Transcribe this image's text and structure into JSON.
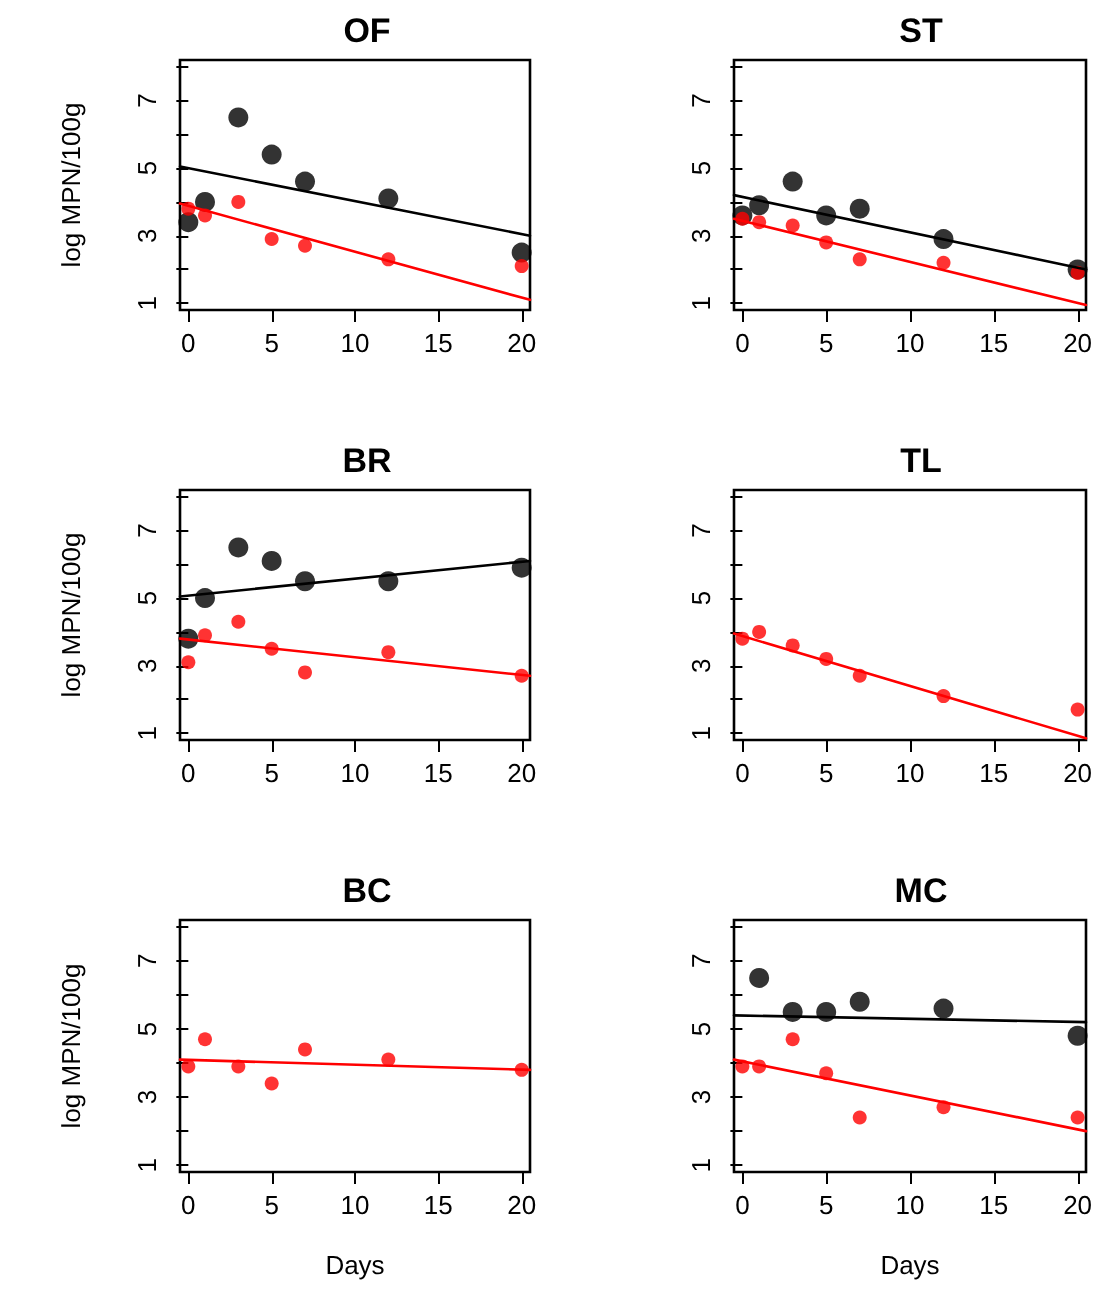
{
  "chart_data": [
    {
      "type": "scatter",
      "title": "OF",
      "ylabel": "log MPN/100g",
      "xlim": [
        -0.5,
        20.5
      ],
      "xticks": [
        0,
        5,
        10,
        15,
        20
      ],
      "ylim": [
        0.8,
        8.2
      ],
      "yticks": [
        1,
        {
          "value": 2,
          "label": null
        },
        3,
        {
          "value": 4,
          "label": null
        },
        5,
        {
          "value": 6,
          "label": null
        },
        7,
        {
          "value": 8,
          "label": null
        }
      ],
      "marker": "circle",
      "line_style": "solid",
      "series": [
        {
          "color": "#000000",
          "x": [
            0,
            1,
            3,
            5,
            7,
            12,
            20
          ],
          "values": [
            3.4,
            4.0,
            6.5,
            5.4,
            4.6,
            4.1,
            2.5
          ]
        },
        {
          "color": "#ff0000",
          "x": [
            0,
            1,
            3,
            5,
            7,
            12,
            20
          ],
          "values": [
            3.8,
            3.6,
            4.0,
            2.9,
            2.7,
            2.3,
            2.1
          ]
        },
        {
          "type": "line",
          "marker": "none",
          "color": "#000000",
          "x": [
            -0.5,
            20.5
          ],
          "values": [
            5.05,
            3.0
          ]
        },
        {
          "type": "line",
          "marker": "none",
          "color": "#ff0000",
          "x": [
            -0.5,
            20.5
          ],
          "values": [
            3.95,
            1.1
          ]
        }
      ]
    },
    {
      "type": "scatter",
      "title": "ST",
      "xlim": [
        -0.5,
        20.5
      ],
      "xticks": [
        0,
        5,
        10,
        15,
        20
      ],
      "ylim": [
        0.8,
        8.2
      ],
      "yticks": [
        1,
        {
          "value": 2,
          "label": null
        },
        3,
        {
          "value": 4,
          "label": null
        },
        5,
        {
          "value": 6,
          "label": null
        },
        7,
        {
          "value": 8,
          "label": null
        }
      ],
      "marker": "circle",
      "line_style": "solid",
      "series": [
        {
          "color": "#000000",
          "x": [
            0,
            1,
            3,
            5,
            7,
            12,
            20
          ],
          "values": [
            3.6,
            3.9,
            4.6,
            3.6,
            3.8,
            2.9,
            2.0
          ]
        },
        {
          "color": "#ff0000",
          "x": [
            0,
            1,
            3,
            5,
            7,
            12,
            20
          ],
          "values": [
            3.5,
            3.4,
            3.3,
            2.8,
            2.3,
            2.2,
            1.9
          ]
        },
        {
          "type": "line",
          "marker": "none",
          "color": "#000000",
          "x": [
            -0.5,
            20.5
          ],
          "values": [
            4.2,
            2.0
          ]
        },
        {
          "type": "line",
          "marker": "none",
          "color": "#ff0000",
          "x": [
            -0.5,
            20.5
          ],
          "values": [
            3.5,
            0.95
          ]
        }
      ]
    },
    {
      "type": "scatter",
      "title": "BR",
      "ylabel": "log MPN/100g",
      "xlim": [
        -0.5,
        20.5
      ],
      "xticks": [
        0,
        5,
        10,
        15,
        20
      ],
      "ylim": [
        0.8,
        8.2
      ],
      "yticks": [
        1,
        {
          "value": 2,
          "label": null
        },
        3,
        {
          "value": 4,
          "label": null
        },
        5,
        {
          "value": 6,
          "label": null
        },
        7,
        {
          "value": 8,
          "label": null
        }
      ],
      "marker": "circle",
      "line_style": "solid",
      "series": [
        {
          "color": "#000000",
          "x": [
            0,
            1,
            3,
            5,
            7,
            12,
            20
          ],
          "values": [
            3.8,
            5.0,
            6.5,
            6.1,
            5.5,
            5.5,
            5.9
          ]
        },
        {
          "color": "#ff0000",
          "x": [
            0,
            1,
            3,
            5,
            7,
            12,
            20
          ],
          "values": [
            3.1,
            3.9,
            4.3,
            3.5,
            2.8,
            3.4,
            2.7
          ]
        },
        {
          "type": "line",
          "marker": "none",
          "color": "#000000",
          "x": [
            -0.5,
            20.5
          ],
          "values": [
            5.05,
            6.1
          ]
        },
        {
          "type": "line",
          "marker": "none",
          "color": "#ff0000",
          "x": [
            -0.5,
            20.5
          ],
          "values": [
            3.8,
            2.7
          ]
        }
      ]
    },
    {
      "type": "scatter",
      "title": "TL",
      "xlim": [
        -0.5,
        20.5
      ],
      "xticks": [
        0,
        5,
        10,
        15,
        20
      ],
      "ylim": [
        0.8,
        8.2
      ],
      "yticks": [
        1,
        {
          "value": 2,
          "label": null
        },
        3,
        {
          "value": 4,
          "label": null
        },
        5,
        {
          "value": 6,
          "label": null
        },
        7,
        {
          "value": 8,
          "label": null
        }
      ],
      "marker": "circle",
      "line_style": "solid",
      "series": [
        {
          "color": "#ff0000",
          "x": [
            0,
            1,
            3,
            5,
            7,
            12,
            20
          ],
          "values": [
            3.8,
            4.0,
            3.6,
            3.2,
            2.7,
            2.1,
            1.7
          ]
        },
        {
          "type": "line",
          "marker": "none",
          "color": "#ff0000",
          "x": [
            -0.5,
            20.5
          ],
          "values": [
            3.95,
            0.85
          ]
        }
      ]
    },
    {
      "type": "scatter",
      "title": "BC",
      "xlabel": "Days",
      "ylabel": "log MPN/100g",
      "xlim": [
        -0.5,
        20.5
      ],
      "xticks": [
        0,
        5,
        10,
        15,
        20
      ],
      "ylim": [
        0.8,
        8.2
      ],
      "yticks": [
        1,
        {
          "value": 2,
          "label": null
        },
        3,
        {
          "value": 4,
          "label": null
        },
        5,
        {
          "value": 6,
          "label": null
        },
        7,
        {
          "value": 8,
          "label": null
        }
      ],
      "marker": "circle",
      "line_style": "solid",
      "series": [
        {
          "color": "#ff0000",
          "x": [
            0,
            1,
            3,
            5,
            7,
            12,
            20
          ],
          "values": [
            3.9,
            4.7,
            3.9,
            3.4,
            4.4,
            4.1,
            3.8
          ]
        },
        {
          "type": "line",
          "marker": "none",
          "color": "#ff0000",
          "x": [
            -0.5,
            20.5
          ],
          "values": [
            4.1,
            3.8
          ]
        }
      ]
    },
    {
      "type": "scatter",
      "title": "MC",
      "xlabel": "Days",
      "xlim": [
        -0.5,
        20.5
      ],
      "xticks": [
        0,
        5,
        10,
        15,
        20
      ],
      "ylim": [
        0.8,
        8.2
      ],
      "yticks": [
        1,
        {
          "value": 2,
          "label": null
        },
        3,
        {
          "value": 4,
          "label": null
        },
        5,
        {
          "value": 6,
          "label": null
        },
        7,
        {
          "value": 8,
          "label": null
        }
      ],
      "marker": "circle",
      "line_style": "solid",
      "series": [
        {
          "color": "#000000",
          "x": [
            1,
            3,
            5,
            7,
            12,
            20
          ],
          "values": [
            6.5,
            5.5,
            5.5,
            5.8,
            5.6,
            4.8
          ]
        },
        {
          "color": "#ff0000",
          "x": [
            0,
            1,
            3,
            5,
            7,
            12,
            20
          ],
          "values": [
            3.9,
            3.9,
            4.7,
            3.7,
            2.4,
            2.7,
            2.4
          ]
        },
        {
          "type": "line",
          "marker": "none",
          "color": "#000000",
          "x": [
            -0.5,
            20.5
          ],
          "values": [
            5.4,
            5.2
          ]
        },
        {
          "type": "line",
          "marker": "none",
          "color": "#ff0000",
          "x": [
            -0.5,
            20.5
          ],
          "values": [
            4.1,
            2.0
          ]
        }
      ]
    }
  ]
}
